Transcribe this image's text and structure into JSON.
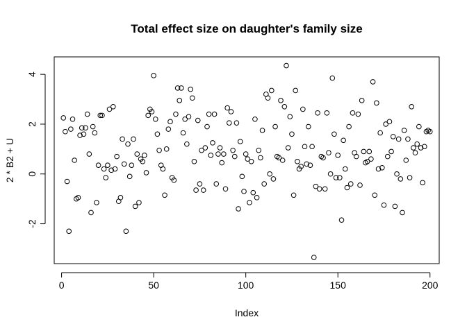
{
  "chart_data": {
    "type": "scatter",
    "title": "Total effect size on daughter's family size",
    "xlabel": "Index",
    "ylabel": "2 * B2 + U",
    "xlim": [
      -4,
      205
    ],
    "ylim": [
      -3.6,
      4.7
    ],
    "xticks": [
      0,
      50,
      100,
      150,
      200
    ],
    "yticks": [
      -2,
      0,
      2,
      4
    ],
    "grid": false,
    "legend": "none",
    "x": [
      1,
      2,
      3,
      4,
      5,
      6,
      7,
      8,
      9,
      10,
      11,
      12,
      13,
      14,
      15,
      16,
      17,
      18,
      19,
      20,
      21,
      22,
      23,
      24,
      25,
      26,
      27,
      28,
      29,
      30,
      31,
      32,
      33,
      34,
      35,
      36,
      37,
      38,
      39,
      40,
      41,
      42,
      43,
      44,
      45,
      46,
      47,
      48,
      49,
      50,
      51,
      52,
      53,
      54,
      55,
      56,
      57,
      58,
      59,
      60,
      61,
      62,
      63,
      64,
      65,
      66,
      67,
      68,
      69,
      70,
      71,
      72,
      73,
      74,
      75,
      76,
      77,
      78,
      79,
      80,
      81,
      82,
      83,
      84,
      85,
      86,
      87,
      88,
      89,
      90,
      91,
      92,
      93,
      94,
      95,
      96,
      97,
      98,
      99,
      100,
      101,
      102,
      103,
      104,
      105,
      106,
      107,
      108,
      109,
      110,
      111,
      112,
      113,
      114,
      115,
      116,
      117,
      118,
      119,
      120,
      121,
      122,
      123,
      124,
      125,
      126,
      127,
      128,
      129,
      130,
      131,
      132,
      133,
      134,
      135,
      136,
      137,
      138,
      139,
      140,
      141,
      142,
      143,
      144,
      145,
      146,
      147,
      148,
      149,
      150,
      151,
      152,
      153,
      154,
      155,
      156,
      157,
      158,
      159,
      160,
      161,
      162,
      163,
      164,
      165,
      166,
      167,
      168,
      169,
      170,
      171,
      172,
      173,
      174,
      175,
      176,
      177,
      178,
      179,
      180,
      181,
      182,
      183,
      184,
      185,
      186,
      187,
      188,
      189,
      190,
      191,
      192,
      193,
      194,
      195,
      196,
      197,
      198,
      199,
      200
    ],
    "y": [
      2.25,
      1.7,
      -0.3,
      -2.3,
      1.8,
      2.2,
      0.55,
      -1.0,
      -0.95,
      1.55,
      1.85,
      1.6,
      1.85,
      2.4,
      0.8,
      -1.55,
      1.9,
      1.65,
      -1.15,
      0.35,
      2.35,
      2.35,
      0.2,
      -0.15,
      0.35,
      2.6,
      0.15,
      2.7,
      0.2,
      0.7,
      -1.1,
      -0.95,
      1.4,
      0.4,
      -2.3,
      1.2,
      -0.1,
      0.35,
      1.4,
      -1.3,
      0.8,
      -1.15,
      0.6,
      0.5,
      0.75,
      0.05,
      2.35,
      2.6,
      2.5,
      3.95,
      2.2,
      1.6,
      0.95,
      0.35,
      0.2,
      -0.85,
      1.0,
      1.8,
      2.1,
      -0.15,
      -0.25,
      2.4,
      3.45,
      2.95,
      3.45,
      1.65,
      2.2,
      1.2,
      2.3,
      3.4,
      3.05,
      0.5,
      -0.65,
      2.15,
      -0.4,
      0.95,
      -0.65,
      1.05,
      1.9,
      2.4,
      0.75,
      1.25,
      2.4,
      -0.4,
      0.8,
      1.05,
      0.45,
      0.8,
      -0.6,
      2.65,
      2.05,
      2.5,
      0.95,
      0.7,
      2.05,
      -1.4,
      1.3,
      -0.1,
      -0.7,
      0.8,
      0.6,
      -1.15,
      0.5,
      -0.75,
      2.2,
      -0.95,
      0.95,
      0.65,
      1.75,
      -0.4,
      3.2,
      3.05,
      0.0,
      3.35,
      -0.2,
      1.9,
      0.7,
      0.65,
      2.95,
      0.55,
      2.7,
      4.35,
      1.05,
      2.3,
      1.6,
      -0.85,
      3.35,
      0.5,
      0.2,
      0.3,
      2.6,
      1.1,
      0.4,
      1.9,
      0.35,
      1.1,
      -3.35,
      -0.5,
      2.45,
      -0.6,
      0.7,
      0.65,
      -0.6,
      2.45,
      0.85,
      0.0,
      3.85,
      1.6,
      -0.15,
      0.75,
      -0.15,
      -1.85,
      1.35,
      0.2,
      -0.55,
      1.9,
      -0.4,
      2.45,
      0.85,
      0.7,
      2.4,
      -0.45,
      2.95,
      0.9,
      0.45,
      0.5,
      0.9,
      0.6,
      3.7,
      -0.85,
      2.85,
      0.2,
      1.65,
      0.25,
      -1.25,
      2.0,
      0.7,
      2.1,
      0.9,
      1.5,
      -1.3,
      0.0,
      1.4,
      -0.2,
      -1.55,
      1.75,
      0.55,
      1.4,
      -0.15,
      2.7,
      1.05,
      0.85,
      1.2,
      1.9,
      1.05,
      -0.35,
      1.1,
      1.7,
      1.75,
      1.7
    ]
  }
}
